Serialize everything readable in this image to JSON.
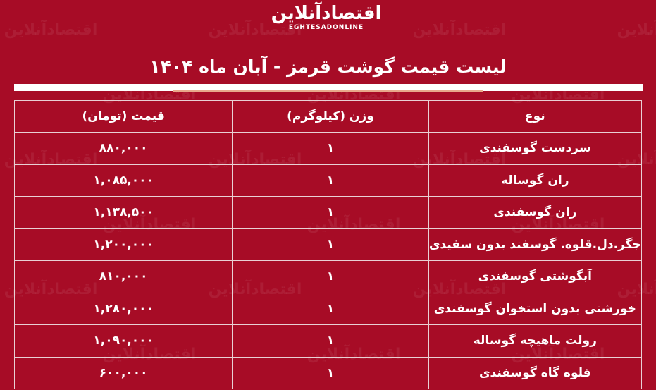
{
  "brand": {
    "logo_fa": "اقتصادآنلاین",
    "logo_en": "EGHTESADONLINE",
    "background": "#a70c26",
    "accent": "#e8a88a"
  },
  "title": "لیست قیمت گوشت قرمز - آبان ماه ۱۴۰۴",
  "table": {
    "headers": [
      "نوع",
      "وزن (کیلوگرم)",
      "قیمت (تومان)"
    ],
    "rows": [
      {
        "type": "سردست گوسفندی",
        "weight": "۱",
        "price": "۸۸۰,۰۰۰"
      },
      {
        "type": "ران گوساله",
        "weight": "۱",
        "price": "۱,۰۸۵,۰۰۰"
      },
      {
        "type": "ران گوسفندی",
        "weight": "۱",
        "price": "۱,۱۳۸,۵۰۰"
      },
      {
        "type": "جگر.دل.قلوه. گوسفند بدون سفیدی",
        "weight": "۱",
        "price": "۱,۲۰۰,۰۰۰"
      },
      {
        "type": "آبگوشتی گوسفندی",
        "weight": "۱",
        "price": "۸۱۰,۰۰۰"
      },
      {
        "type": "خورشتی بدون استخوان گوسفندی",
        "weight": "۱",
        "price": "۱,۲۸۰,۰۰۰"
      },
      {
        "type": "رولت ماهیچه گوساله",
        "weight": "۱",
        "price": "۱,۰۹۰,۰۰۰"
      },
      {
        "type": "قلوه گاه گوسفندی",
        "weight": "۱",
        "price": "۶۰۰,۰۰۰"
      }
    ]
  }
}
